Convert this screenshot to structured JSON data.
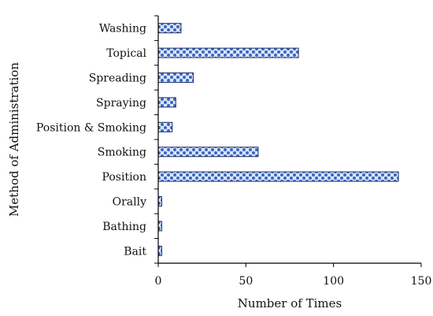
{
  "chart_data": {
    "type": "bar",
    "orientation": "horizontal",
    "categories": [
      "Washing",
      "Topical",
      "Spreading",
      "Spraying",
      "Position & Smoking",
      "Smoking",
      "Position",
      "Orally",
      "Bathing",
      "Bait"
    ],
    "values": [
      13,
      80,
      20,
      10,
      8,
      57,
      137,
      2,
      2,
      2
    ],
    "xlabel": "Number of Times",
    "ylabel": "Method of Administration",
    "xlim": [
      0,
      150
    ],
    "xticks": [
      "0",
      "50",
      "100",
      "150"
    ],
    "grid": false,
    "legend": "none",
    "bar_fill": "#3a66c4",
    "bar_pattern_bg": "#dbe6f7",
    "bar_stroke": "#1d2f66"
  }
}
